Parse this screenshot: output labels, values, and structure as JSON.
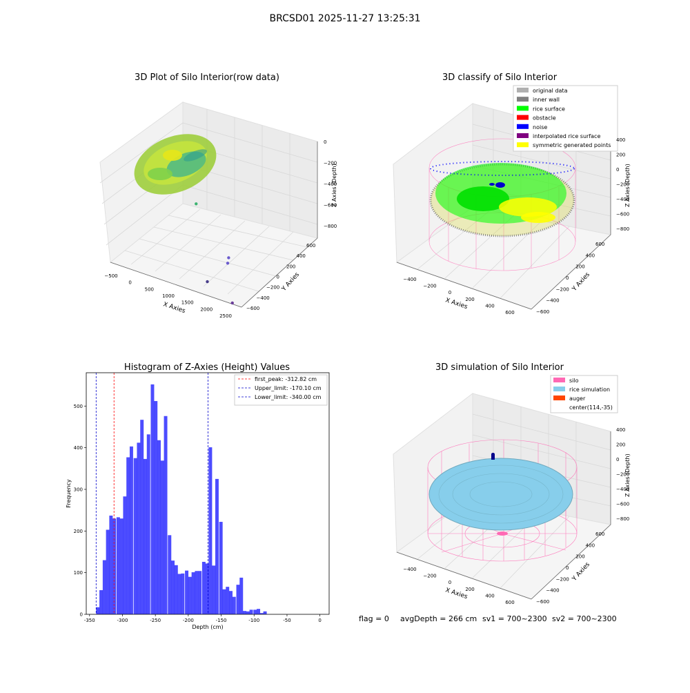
{
  "figure_title": "BRCSD01 2025-11-27 13:25:31",
  "status_line": {
    "flag": "flag = 0",
    "avg_depth": "avgDepth = 266 cm",
    "sv1": "sv1 = 700~2300",
    "sv2": "sv2 = 700~2300"
  },
  "colors": {
    "hist_bar": "#0000ff",
    "first_peak": "#ff0000",
    "limits": "#0000cc",
    "silo": "#ff69b4",
    "rice_simulation": "#87ceeb",
    "auger": "#ff4500",
    "original_data": "#b0b0b0",
    "inner_wall": "#808080",
    "rice_surface": "#00ff00",
    "obstacle": "#ff0000",
    "noise": "#0000ff",
    "interpolated_rice_surface": "#800080",
    "symmetric_generated_points": "#ffff00"
  },
  "chart_data": [
    {
      "type": "scatter3d",
      "title": "3D Plot of Silo Interior(row data)",
      "xlabel": "X Axies",
      "ylabel": "Y Axies",
      "zlabel": "Z Axies (Depth)",
      "x_ticks": [
        "−500",
        "0",
        "500",
        "1000",
        "1500",
        "2000",
        "2500"
      ],
      "y_ticks": [
        "−600",
        "−400",
        "−200",
        "0",
        "200",
        "400",
        "600"
      ],
      "z_ticks": [
        "0",
        "−200",
        "−400",
        "−600",
        "−800"
      ],
      "outlier_points": [
        {
          "x": 300,
          "y": 100,
          "z": -560,
          "color": "#3cb371"
        },
        {
          "x": 1450,
          "y": -150,
          "z": -780,
          "color": "#6a5acd"
        },
        {
          "x": 1500,
          "y": -200,
          "z": -800,
          "color": "#6a5acd"
        },
        {
          "x": 1300,
          "y": -400,
          "z": -900,
          "color": "#483d8b"
        },
        {
          "x": 2050,
          "y": -500,
          "z": -950,
          "color": "#6a3d9a"
        }
      ]
    },
    {
      "type": "scatter3d",
      "title": "3D classify of Silo Interior",
      "xlabel": "X Axies",
      "ylabel": "Y Axies",
      "zlabel": "Z Axies (Depth)",
      "x_ticks": [
        "−400",
        "−200",
        "0",
        "200",
        "400",
        "600"
      ],
      "y_ticks": [
        "−600",
        "−400",
        "−200",
        "0",
        "200",
        "400",
        "600"
      ],
      "z_ticks": [
        "400",
        "200",
        "0",
        "−200",
        "−400",
        "−600",
        "−800"
      ],
      "legend": [
        "original data",
        "inner wall",
        "rice surface",
        "obstacle",
        "noise",
        "interpolated rice surface",
        "symmetric generated points"
      ],
      "legend_position": "top-right"
    },
    {
      "type": "bar",
      "title": "Histogram of Z-Axies (Height) Values",
      "xlabel": "Depth (cm)",
      "ylabel": "Frequency",
      "xlim": [
        -355,
        14
      ],
      "ylim": [
        0,
        580
      ],
      "x_ticks": [
        -350,
        -300,
        -250,
        -200,
        -150,
        -100,
        -50,
        0
      ],
      "y_ticks": [
        0,
        100,
        200,
        300,
        400,
        500
      ],
      "bin_width": 5.2,
      "bins": [
        {
          "x": -340,
          "count": 17
        },
        {
          "x": -335,
          "count": 58
        },
        {
          "x": -330,
          "count": 130
        },
        {
          "x": -325,
          "count": 203
        },
        {
          "x": -320,
          "count": 237
        },
        {
          "x": -315,
          "count": 230
        },
        {
          "x": -309,
          "count": 233
        },
        {
          "x": -304,
          "count": 230
        },
        {
          "x": -299,
          "count": 283
        },
        {
          "x": -294,
          "count": 377
        },
        {
          "x": -289,
          "count": 403
        },
        {
          "x": -283,
          "count": 375
        },
        {
          "x": -278,
          "count": 412
        },
        {
          "x": -273,
          "count": 467
        },
        {
          "x": -268,
          "count": 373
        },
        {
          "x": -263,
          "count": 432
        },
        {
          "x": -257,
          "count": 552
        },
        {
          "x": -252,
          "count": 512
        },
        {
          "x": -247,
          "count": 418
        },
        {
          "x": -242,
          "count": 369
        },
        {
          "x": -237,
          "count": 476
        },
        {
          "x": -231,
          "count": 190
        },
        {
          "x": -226,
          "count": 129
        },
        {
          "x": -221,
          "count": 118
        },
        {
          "x": -216,
          "count": 97
        },
        {
          "x": -211,
          "count": 98
        },
        {
          "x": -205,
          "count": 105
        },
        {
          "x": -200,
          "count": 90
        },
        {
          "x": -195,
          "count": 101
        },
        {
          "x": -190,
          "count": 104
        },
        {
          "x": -185,
          "count": 104
        },
        {
          "x": -179,
          "count": 126
        },
        {
          "x": -174,
          "count": 122
        },
        {
          "x": -169,
          "count": 401
        },
        {
          "x": -164,
          "count": 117
        },
        {
          "x": -159,
          "count": 325
        },
        {
          "x": -153,
          "count": 222
        },
        {
          "x": -148,
          "count": 60
        },
        {
          "x": -143,
          "count": 66
        },
        {
          "x": -138,
          "count": 56
        },
        {
          "x": -133,
          "count": 42
        },
        {
          "x": -127,
          "count": 71
        },
        {
          "x": -122,
          "count": 88
        },
        {
          "x": -117,
          "count": 8
        },
        {
          "x": -112,
          "count": 7
        },
        {
          "x": -107,
          "count": 11
        },
        {
          "x": -101,
          "count": 11
        },
        {
          "x": -96,
          "count": 13
        },
        {
          "x": -91,
          "count": 3
        },
        {
          "x": -86,
          "count": 7
        }
      ],
      "vlines": [
        {
          "label": "first_peak: -312.82 cm",
          "x": -312.82,
          "color": "#ff0000"
        },
        {
          "label": "Upper_limit: -170.10 cm",
          "x": -170.1,
          "color": "#0000cc"
        },
        {
          "label": "Lower_limit: -340.00 cm",
          "x": -340.0,
          "color": "#0000cc"
        }
      ],
      "legend_position": "top-right"
    },
    {
      "type": "surface3d",
      "title": "3D simulation of Silo Interior",
      "xlabel": "X Axies",
      "ylabel": "Y Axies",
      "zlabel": "Z Axies (Depth)",
      "x_ticks": [
        "−400",
        "−200",
        "0",
        "200",
        "400",
        "600"
      ],
      "y_ticks": [
        "−600",
        "−400",
        "−200",
        "0",
        "200",
        "400",
        "600"
      ],
      "z_ticks": [
        "400",
        "200",
        "0",
        "−200",
        "−400",
        "−600",
        "−800"
      ],
      "legend": [
        "silo",
        "rice simulation",
        "auger",
        "center(114,-35)"
      ],
      "legend_position": "top-right"
    }
  ]
}
